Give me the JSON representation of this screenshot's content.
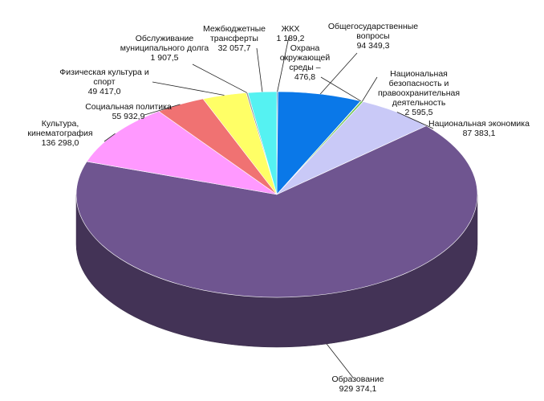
{
  "chart_data": {
    "type": "pie3d",
    "categories": [
      "ЖКХ",
      "Общегосударственные вопросы",
      "Охрана окружающей среды –",
      "Национальная безопасность и правоохранительная деятельность",
      "Национальная экономика",
      "Образование",
      "Культура, кинематография",
      "Социальная политика",
      "Физическая культура и спорт",
      "Обслуживание муниципального долга",
      "Межбюджетные трансферты"
    ],
    "values": [
      1189.2,
      94349.3,
      476.8,
      2595.5,
      87383.1,
      929374.1,
      136298.0,
      55932.9,
      49417.0,
      1907.5,
      32057.7
    ],
    "value_labels": [
      "1 189,2",
      "94 349,3",
      "476,8",
      "2 595,5",
      "87 383,1",
      "929 374,1",
      "136 298,0",
      "55 932,9",
      "49 417,0",
      "1 907,5",
      "32 057,7"
    ],
    "colors": [
      "#3a6ea5",
      "#0a78e8",
      "#4f81bd",
      "#6cc24a",
      "#c9c9f7",
      "#6f5590",
      "#ff99ff",
      "#f07272",
      "#ffff66",
      "#9a9a9a",
      "#55f2f2"
    ]
  }
}
